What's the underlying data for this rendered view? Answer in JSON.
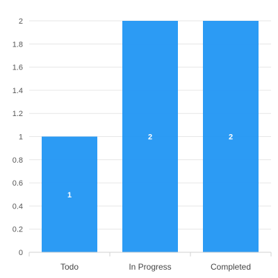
{
  "chart_data": {
    "type": "bar",
    "categories": [
      "Todo",
      "In Progress",
      "Completed"
    ],
    "values": [
      1,
      2,
      2
    ],
    "data_labels": [
      "1",
      "2",
      "2"
    ],
    "y_ticks": [
      "0",
      "0.2",
      "0.4",
      "0.6",
      "0.8",
      "1",
      "1.2",
      "1.4",
      "1.6",
      "1.8",
      "2"
    ],
    "ylim": [
      0,
      2
    ],
    "grid": true,
    "legend": "none",
    "bar_color": "#2196f3",
    "title": "",
    "xlabel": "",
    "ylabel": ""
  }
}
